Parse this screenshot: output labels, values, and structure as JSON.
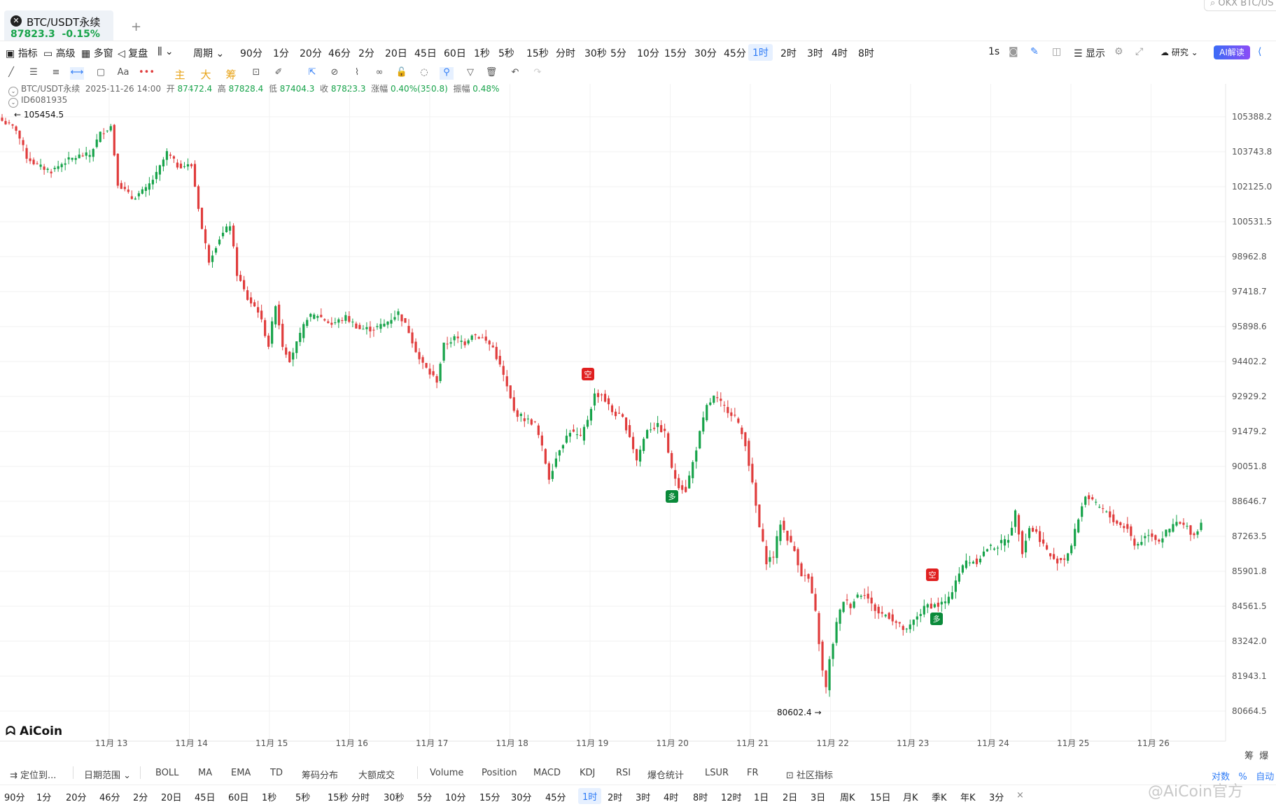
{
  "tab": {
    "title": "BTC/USDT永续",
    "price": "87823.3",
    "change": "-0.15%",
    "close_icon": "x-icon",
    "add": "+"
  },
  "search": {
    "placeholder": "OKX BTC/US"
  },
  "toolbar1": {
    "left": [
      "指标",
      "高级",
      "多窗",
      "复盘"
    ],
    "period_label": "周期",
    "intervals": [
      "90分",
      "1分",
      "20分",
      "46分",
      "2分",
      "20日",
      "45日",
      "60日",
      "1秒",
      "5秒",
      "15秒",
      "分时",
      "30秒",
      "5分",
      "10分",
      "15分",
      "30分",
      "45分",
      "1时",
      "2时",
      "3时",
      "4时",
      "8时"
    ],
    "active_interval": "1时",
    "right": [
      "1s",
      "显示",
      "研究"
    ],
    "ai_label": "AI解读"
  },
  "toolbar2": {
    "text_items": [
      "主",
      "大",
      "筹"
    ],
    "font_tool": "Aa"
  },
  "info": {
    "symbol": "BTC/USDT永续",
    "datetime": "2025-11-26 14:00",
    "open_label": "开",
    "open": "87472.4",
    "high_label": "高",
    "high": "87828.4",
    "low_label": "低",
    "low": "87404.3",
    "close_label": "收",
    "close": "87823.3",
    "chg_label": "涨幅",
    "chg": "0.40%(350.8)",
    "amp_label": "振幅",
    "amp": "0.48%",
    "id": "ID6081935"
  },
  "chart_data": {
    "type": "candlestick",
    "y_ticks": [
      "105388.2",
      "103743.8",
      "102125.0",
      "100531.5",
      "98962.8",
      "97418.7",
      "95898.6",
      "94402.2",
      "92929.2",
      "91479.2",
      "90051.8",
      "88646.7",
      "87263.5",
      "85901.8",
      "84561.5",
      "83242.0",
      "81943.1",
      "80664.5"
    ],
    "x_ticks": [
      "11月 13",
      "11月 14",
      "11月 15",
      "11月 16",
      "11月 17",
      "11月 18",
      "11月 19",
      "11月 20",
      "11月 21",
      "11月 22",
      "11月 23",
      "11月 24",
      "11月 25",
      "11月 26"
    ],
    "high_marker": "105454.5",
    "low_marker": "80602.4",
    "markers": [
      {
        "label": "空",
        "type": "short"
      },
      {
        "label": "多",
        "type": "long"
      },
      {
        "label": "空",
        "type": "short"
      },
      {
        "label": "多",
        "type": "long"
      }
    ],
    "path": [
      [
        0,
        105200
      ],
      [
        4,
        104800
      ],
      [
        7,
        103500
      ],
      [
        10,
        103100
      ],
      [
        14,
        102850
      ],
      [
        18,
        103300
      ],
      [
        22,
        103550
      ],
      [
        25,
        103600
      ],
      [
        28,
        104600
      ],
      [
        31,
        104950
      ],
      [
        33,
        102300
      ],
      [
        37,
        101600
      ],
      [
        41,
        102000
      ],
      [
        44,
        102700
      ],
      [
        47,
        103700
      ],
      [
        50,
        103100
      ],
      [
        54,
        103100
      ],
      [
        56,
        101200
      ],
      [
        57,
        100200
      ],
      [
        59,
        98800
      ],
      [
        62,
        99800
      ],
      [
        65,
        100400
      ],
      [
        67,
        98200
      ],
      [
        70,
        97100
      ],
      [
        73,
        96600
      ],
      [
        76,
        95100
      ],
      [
        78,
        96900
      ],
      [
        80,
        95100
      ],
      [
        82,
        94500
      ],
      [
        85,
        95500
      ],
      [
        87,
        96300
      ],
      [
        90,
        96400
      ],
      [
        94,
        96000
      ],
      [
        98,
        96300
      ],
      [
        102,
        95800
      ],
      [
        106,
        95800
      ],
      [
        109,
        96000
      ],
      [
        113,
        96500
      ],
      [
        116,
        95700
      ],
      [
        119,
        94500
      ],
      [
        122,
        93900
      ],
      [
        124,
        93600
      ],
      [
        126,
        95100
      ],
      [
        129,
        95400
      ],
      [
        132,
        95200
      ],
      [
        134,
        95600
      ],
      [
        137,
        95400
      ],
      [
        140,
        95000
      ],
      [
        143,
        93800
      ],
      [
        146,
        92300
      ],
      [
        149,
        92000
      ],
      [
        152,
        91800
      ],
      [
        154,
        90800
      ],
      [
        156,
        89600
      ],
      [
        159,
        90800
      ],
      [
        162,
        91500
      ],
      [
        165,
        91200
      ],
      [
        167,
        92000
      ],
      [
        169,
        93000
      ],
      [
        171,
        93000
      ],
      [
        174,
        92300
      ],
      [
        177,
        92000
      ],
      [
        179,
        91300
      ],
      [
        181,
        90300
      ],
      [
        184,
        91600
      ],
      [
        187,
        91700
      ],
      [
        189,
        91400
      ],
      [
        191,
        89900
      ],
      [
        193,
        89300
      ],
      [
        195,
        89100
      ],
      [
        197,
        90200
      ],
      [
        199,
        91400
      ],
      [
        201,
        92500
      ],
      [
        203,
        92900
      ],
      [
        206,
        92500
      ],
      [
        209,
        92100
      ],
      [
        212,
        91000
      ],
      [
        214,
        89300
      ],
      [
        216,
        87600
      ],
      [
        218,
        86300
      ],
      [
        220,
        86500
      ],
      [
        222,
        87800
      ],
      [
        224,
        87200
      ],
      [
        226,
        86700
      ],
      [
        228,
        85800
      ],
      [
        230,
        85600
      ],
      [
        232,
        84300
      ],
      [
        234,
        82100
      ],
      [
        235,
        81500
      ],
      [
        236,
        82500
      ],
      [
        238,
        83900
      ],
      [
        240,
        84800
      ],
      [
        242,
        84600
      ],
      [
        244,
        85000
      ],
      [
        246,
        85100
      ],
      [
        248,
        84600
      ],
      [
        250,
        84300
      ],
      [
        253,
        84200
      ],
      [
        256,
        83800
      ],
      [
        258,
        83600
      ],
      [
        261,
        84200
      ],
      [
        264,
        84600
      ],
      [
        267,
        84600
      ],
      [
        270,
        84800
      ],
      [
        272,
        85600
      ],
      [
        275,
        86300
      ],
      [
        278,
        86300
      ],
      [
        281,
        86800
      ],
      [
        284,
        86900
      ],
      [
        287,
        87200
      ],
      [
        289,
        88200
      ],
      [
        291,
        86700
      ],
      [
        293,
        87600
      ],
      [
        295,
        87400
      ],
      [
        298,
        86700
      ],
      [
        300,
        86300
      ],
      [
        303,
        86400
      ],
      [
        305,
        86900
      ],
      [
        307,
        88000
      ],
      [
        309,
        88900
      ],
      [
        311,
        88600
      ],
      [
        314,
        88300
      ],
      [
        317,
        87900
      ],
      [
        319,
        87700
      ],
      [
        321,
        87600
      ],
      [
        323,
        86900
      ],
      [
        325,
        87100
      ],
      [
        327,
        87400
      ],
      [
        330,
        87100
      ],
      [
        332,
        87400
      ],
      [
        335,
        87800
      ],
      [
        338,
        87600
      ],
      [
        340,
        87300
      ],
      [
        342,
        87800
      ]
    ]
  },
  "bottom1": {
    "goto": "定位到...",
    "date_range": "日期范围",
    "indicators": [
      "BOLL",
      "MA",
      "EMA",
      "TD",
      "筹码分布",
      "大额成交",
      "Volume",
      "Position",
      "MACD",
      "KDJ",
      "RSI",
      "爆仓统计",
      "LSUR",
      "FR",
      "社区指标"
    ],
    "right": [
      "对数",
      "%",
      "自动"
    ]
  },
  "bottom2": {
    "intervals": [
      "90分",
      "1分",
      "20分",
      "46分",
      "2分",
      "20日",
      "45日",
      "60日",
      "1秒",
      "5秒",
      "15秒",
      "分时",
      "30秒",
      "5分",
      "10分",
      "15分",
      "30分",
      "45分",
      "1时",
      "2时",
      "3时",
      "4时",
      "8时",
      "12时",
      "1日",
      "2日",
      "3日",
      "周K",
      "15日",
      "月K",
      "季K",
      "年K",
      "3分"
    ],
    "active": "1时",
    "close": "×"
  },
  "side_labels": [
    "筹",
    "爆"
  ],
  "brand": {
    "logo": "AiCoin",
    "watermark": "@AiCoin官方"
  },
  "colors": {
    "up": "#17a34a",
    "down": "#e03c3c",
    "accent": "#2f7cf6"
  }
}
